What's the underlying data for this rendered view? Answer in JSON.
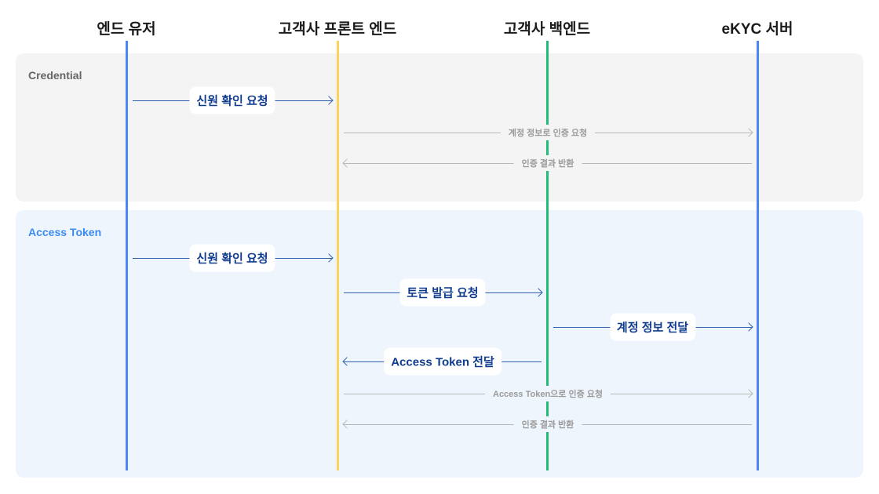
{
  "participants": [
    {
      "label": "엔드 유저",
      "color": "#4a86f7"
    },
    {
      "label": "고객사 프론트 엔드",
      "color": "#fdd35a"
    },
    {
      "label": "고객사 백엔드",
      "color": "#22bb77"
    },
    {
      "label": "eKYC 서버",
      "color": "#4a86f7"
    }
  ],
  "sections": [
    {
      "title": "Credential",
      "title_color": "#666666",
      "bg": "#f4f4f4"
    },
    {
      "title": "Access Token",
      "title_color": "#3d8bf2",
      "bg": "#eff5fd"
    }
  ],
  "messages": [
    {
      "label": "신원 확인 요청",
      "from": 0,
      "to": 1,
      "style": "main"
    },
    {
      "label": "계정 정보로 인증 요청",
      "from": 1,
      "to": 3,
      "style": "sub"
    },
    {
      "label": "인증 결과 반환",
      "from": 3,
      "to": 1,
      "style": "sub"
    },
    {
      "label": "신원 확인 요청",
      "from": 0,
      "to": 1,
      "style": "main"
    },
    {
      "label": "토큰 발급 요청",
      "from": 1,
      "to": 2,
      "style": "main"
    },
    {
      "label": "계정 정보 전달",
      "from": 2,
      "to": 3,
      "style": "main"
    },
    {
      "label": "Access Token 전달",
      "from": 2,
      "to": 1,
      "style": "main"
    },
    {
      "label": "Access Token으로 인증 요청",
      "from": 1,
      "to": 3,
      "style": "sub"
    },
    {
      "label": "인증 결과 반환",
      "from": 3,
      "to": 1,
      "style": "sub"
    }
  ]
}
